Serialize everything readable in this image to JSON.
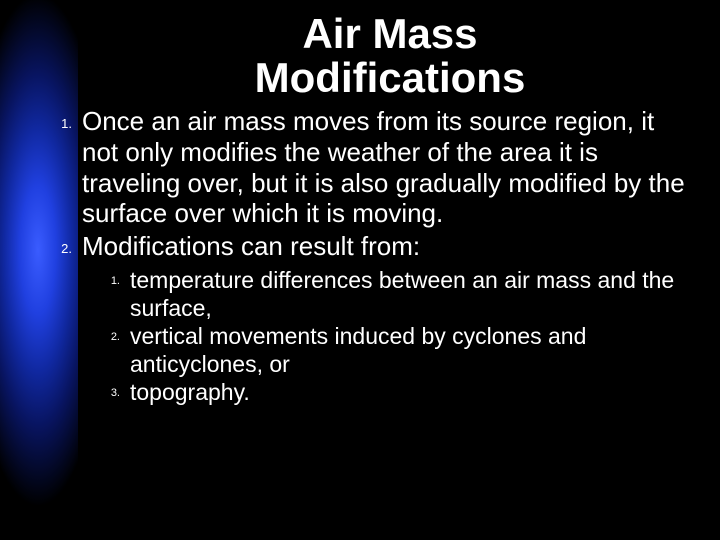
{
  "title_line1": "Air Mass",
  "title_line2": "Modifications",
  "outer_items": [
    {
      "n": "1.",
      "text": "Once an air mass moves from its source region, it not only modifies the weather of the area it is traveling over, but it is also gradually modified by the surface over which it is moving."
    },
    {
      "n": "2.",
      "text": "Modifications can result from:"
    }
  ],
  "inner_items": [
    {
      "n": "1.",
      "text": "temperature differences between an air mass and the surface,"
    },
    {
      "n": "2.",
      "text": "vertical movements induced by cyclones and anticyclones, or"
    },
    {
      "n": "3.",
      "text": "topography."
    }
  ],
  "colors": {
    "background": "#000000",
    "text": "#ffffff",
    "gradient_center": "#3a5cff"
  },
  "typography": {
    "title_fontsize": 42,
    "body_fontsize": 26,
    "sub_fontsize": 23,
    "font_family": "Arial"
  }
}
